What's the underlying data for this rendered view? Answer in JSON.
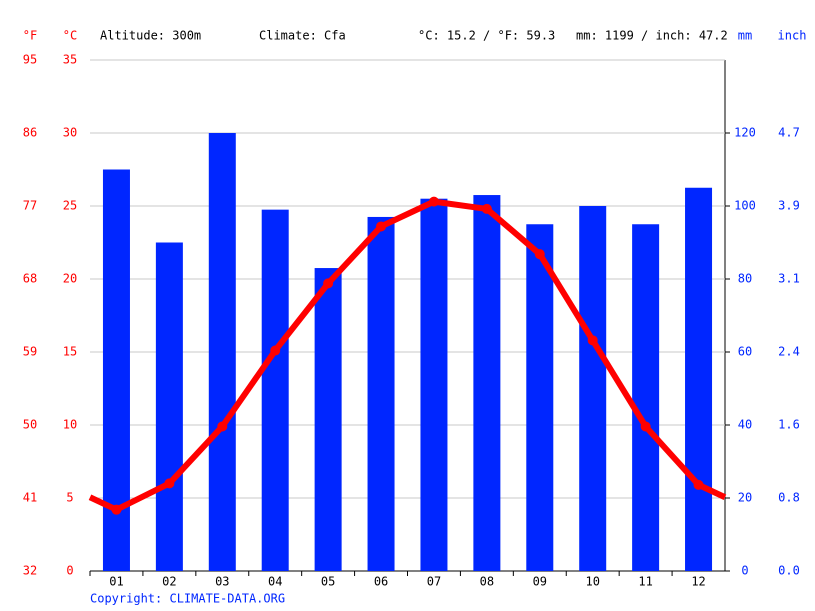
{
  "chart_data": {
    "type": "bar",
    "y3_label": "°F",
    "y_label": "°C",
    "y2_label": "mm",
    "y4_label": "inch",
    "annotations": [
      "Altitude: 300m",
      "Climate: Cfa",
      "°C: 15.2 / °F: 59.3",
      "mm: 1199 / inch: 47.2"
    ],
    "copyright": "Copyright: CLIMATE-DATA.ORG",
    "categories": [
      "01",
      "02",
      "03",
      "04",
      "05",
      "06",
      "07",
      "08",
      "09",
      "10",
      "11",
      "12"
    ],
    "series": [
      {
        "type": "bar",
        "axis": "y2",
        "color": "#0026ff",
        "values": [
          110,
          90,
          120,
          99,
          83,
          97,
          102,
          103,
          95,
          100,
          95,
          105
        ]
      },
      {
        "type": "line",
        "axis": "y",
        "color": "#ff0000",
        "values": [
          4.2,
          6.0,
          9.9,
          15.1,
          19.7,
          23.6,
          25.3,
          24.8,
          21.7,
          15.8,
          9.9,
          5.9
        ]
      }
    ],
    "ylim": [
      0,
      35
    ],
    "yticks": [
      0,
      5,
      10,
      15,
      20,
      25,
      30,
      35
    ],
    "y3lim": [
      32,
      95
    ],
    "y3ticks": [
      32,
      41,
      50,
      59,
      68,
      77,
      86,
      95
    ],
    "y2lim": [
      0,
      140
    ],
    "y2ticks": [
      0,
      20,
      40,
      60,
      80,
      100,
      120
    ],
    "y4lim": [
      0,
      5.512
    ],
    "y4ticks": [
      {
        "value": 0,
        "label": "0.0"
      },
      {
        "value": 0.787,
        "label": "0.8"
      },
      {
        "value": 1.575,
        "label": "1.6"
      },
      {
        "value": 2.362,
        "label": "2.4"
      },
      {
        "value": 3.15,
        "label": "3.1"
      },
      {
        "value": 3.937,
        "label": "3.9"
      },
      {
        "value": 4.724,
        "label": "4.7"
      }
    ],
    "grid": true
  }
}
